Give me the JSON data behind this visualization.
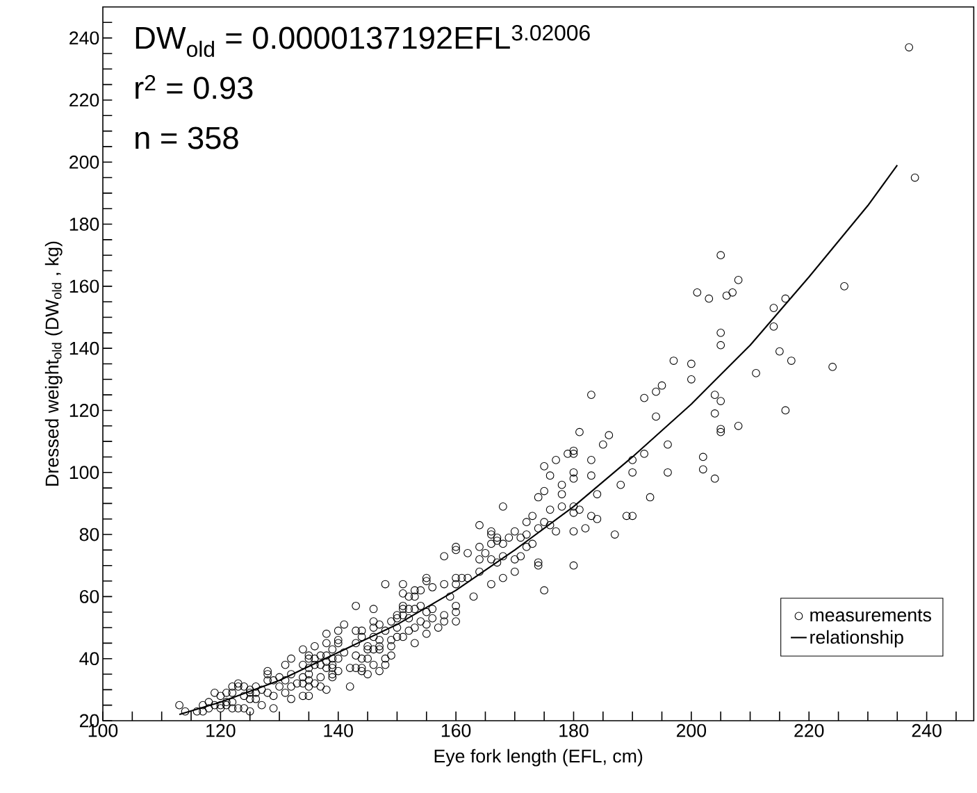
{
  "chart_data": {
    "type": "scatter",
    "xlabel": "Eye fork length (EFL, cm)",
    "ylabel": "Dressed weight$_{old}$ (DW$_{old}$ , kg)",
    "annotations": [
      "DW$_{old}$ = 0.0000137192EFL$^{3.02006}$",
      "r$^{2}$ = 0.93",
      "n = 358"
    ],
    "xlim": [
      100,
      248
    ],
    "ylim": [
      20,
      250
    ],
    "xticks": [
      100,
      {
        "value": 105,
        "label": null
      },
      {
        "value": 110,
        "label": null
      },
      {
        "value": 115,
        "label": null
      },
      120,
      {
        "value": 125,
        "label": null
      },
      {
        "value": 130,
        "label": null
      },
      {
        "value": 135,
        "label": null
      },
      140,
      {
        "value": 145,
        "label": null
      },
      {
        "value": 150,
        "label": null
      },
      {
        "value": 155,
        "label": null
      },
      160,
      {
        "value": 165,
        "label": null
      },
      {
        "value": 170,
        "label": null
      },
      {
        "value": 175,
        "label": null
      },
      180,
      {
        "value": 185,
        "label": null
      },
      {
        "value": 190,
        "label": null
      },
      {
        "value": 195,
        "label": null
      },
      200,
      {
        "value": 205,
        "label": null
      },
      {
        "value": 210,
        "label": null
      },
      {
        "value": 215,
        "label": null
      },
      220,
      {
        "value": 225,
        "label": null
      },
      {
        "value": 230,
        "label": null
      },
      {
        "value": 235,
        "label": null
      },
      240,
      {
        "value": 245,
        "label": null
      }
    ],
    "yticks": [
      20,
      {
        "value": 25,
        "label": null
      },
      {
        "value": 30,
        "label": null
      },
      {
        "value": 35,
        "label": null
      },
      40,
      {
        "value": 45,
        "label": null
      },
      {
        "value": 50,
        "label": null
      },
      {
        "value": 55,
        "label": null
      },
      60,
      {
        "value": 65,
        "label": null
      },
      {
        "value": 70,
        "label": null
      },
      {
        "value": 75,
        "label": null
      },
      80,
      {
        "value": 85,
        "label": null
      },
      {
        "value": 90,
        "label": null
      },
      {
        "value": 95,
        "label": null
      },
      100,
      {
        "value": 105,
        "label": null
      },
      {
        "value": 110,
        "label": null
      },
      {
        "value": 115,
        "label": null
      },
      120,
      {
        "value": 125,
        "label": null
      },
      {
        "value": 130,
        "label": null
      },
      {
        "value": 135,
        "label": null
      },
      140,
      {
        "value": 145,
        "label": null
      },
      {
        "value": 150,
        "label": null
      },
      {
        "value": 155,
        "label": null
      },
      160,
      {
        "value": 165,
        "label": null
      },
      {
        "value": 170,
        "label": null
      },
      {
        "value": 175,
        "label": null
      },
      180,
      {
        "value": 185,
        "label": null
      },
      {
        "value": 190,
        "label": null
      },
      {
        "value": 195,
        "label": null
      },
      200,
      {
        "value": 205,
        "label": null
      },
      {
        "value": 210,
        "label": null
      },
      {
        "value": 215,
        "label": null
      },
      220,
      {
        "value": 225,
        "label": null
      },
      {
        "value": 230,
        "label": null
      },
      {
        "value": 235,
        "label": null
      },
      240,
      {
        "value": 245,
        "label": null
      }
    ],
    "grid": false,
    "legend": "bottom right",
    "marker": "circle",
    "series": [
      {
        "name": "measurements",
        "color": "#000000",
        "x": [
          237,
          238,
          205,
          208,
          201,
          203,
          206,
          207,
          216,
          226,
          214,
          214,
          205,
          205,
          200,
          200,
          215,
          217,
          211,
          224,
          204,
          205,
          204,
          216,
          205,
          205,
          208,
          202,
          202,
          204,
          197,
          195,
          192,
          194,
          194,
          183,
          196,
          196,
          181,
          186,
          185,
          179,
          180,
          180,
          177,
          175,
          183,
          190,
          192,
          176,
          180,
          180,
          183,
          190,
          188,
          174,
          175,
          178,
          178,
          178,
          181,
          180,
          180,
          184,
          183,
          184,
          168,
          176,
          173,
          172,
          174,
          175,
          176,
          177,
          180,
          182,
          187,
          193,
          189,
          190,
          164,
          166,
          166,
          167,
          167,
          168,
          166,
          169,
          170,
          171,
          172,
          172,
          173,
          162,
          164,
          164,
          165,
          166,
          168,
          170,
          171,
          167,
          174,
          174,
          170,
          164,
          168,
          166,
          175,
          180,
          161,
          162,
          163,
          113,
          114,
          116,
          117,
          117,
          118,
          118,
          119,
          119,
          120,
          120,
          120,
          121,
          121,
          121,
          122,
          122,
          122,
          122,
          123,
          123,
          123,
          124,
          124,
          124,
          125,
          125,
          125,
          125,
          126,
          126,
          126,
          127,
          127,
          128,
          128,
          128,
          128,
          129,
          129,
          129,
          130,
          130,
          131,
          131,
          131,
          132,
          132,
          132,
          132,
          133,
          134,
          134,
          134,
          134,
          134,
          135,
          135,
          135,
          135,
          135,
          135,
          135,
          136,
          136,
          136,
          136,
          137,
          137,
          137,
          137,
          138,
          138,
          138,
          138,
          138,
          138,
          139,
          139,
          139,
          139,
          139,
          139,
          140,
          140,
          140,
          140,
          140,
          141,
          141,
          142,
          142,
          143,
          143,
          143,
          143,
          143,
          144,
          144,
          144,
          144,
          144,
          145,
          145,
          145,
          145,
          146,
          146,
          146,
          146,
          146,
          146,
          147,
          147,
          147,
          147,
          147,
          148,
          148,
          148,
          148,
          149,
          149,
          149,
          149,
          150,
          150,
          150,
          150,
          151,
          151,
          151,
          151,
          151,
          151,
          152,
          152,
          152,
          152,
          153,
          153,
          153,
          153,
          153,
          154,
          154,
          154,
          155,
          155,
          155,
          155,
          155,
          156,
          156,
          156,
          157,
          158,
          158,
          158,
          158,
          159,
          160,
          160,
          160,
          160,
          160,
          160,
          160
        ],
        "values": [
          237,
          195,
          170,
          162,
          158,
          156,
          157,
          158,
          156,
          160,
          153,
          147,
          145,
          141,
          135,
          130,
          139,
          136,
          132,
          134,
          125,
          123,
          119,
          120,
          114,
          113,
          115,
          105,
          101,
          98,
          136,
          128,
          124,
          126,
          118,
          125,
          109,
          100,
          113,
          112,
          109,
          106,
          107,
          106,
          104,
          102,
          104,
          104,
          106,
          99,
          100,
          98,
          99,
          100,
          96,
          92,
          94,
          96,
          93,
          89,
          88,
          89,
          87,
          93,
          86,
          85,
          89,
          88,
          86,
          84,
          82,
          84,
          83,
          81,
          81,
          82,
          80,
          92,
          86,
          86,
          83,
          81,
          80,
          79,
          78,
          77,
          77,
          79,
          81,
          79,
          80,
          76,
          77,
          74,
          76,
          72,
          74,
          72,
          73,
          72,
          73,
          71,
          71,
          70,
          68,
          68,
          66,
          64,
          62,
          70,
          66,
          66,
          60,
          25,
          23,
          23,
          23,
          25,
          24,
          26,
          25,
          29,
          24,
          25,
          28,
          25,
          26,
          29,
          24,
          26,
          29,
          31,
          24,
          31,
          32,
          24,
          28,
          31,
          23,
          27,
          29,
          30,
          27,
          29,
          31,
          25,
          30,
          29,
          33,
          35,
          36,
          24,
          28,
          33,
          31,
          34,
          29,
          33,
          38,
          27,
          31,
          35,
          40,
          32,
          28,
          32,
          34,
          38,
          43,
          28,
          31,
          33,
          35,
          37,
          40,
          41,
          32,
          38,
          40,
          44,
          31,
          34,
          38,
          41,
          30,
          37,
          39,
          41,
          45,
          48,
          34,
          35,
          37,
          38,
          40,
          43,
          36,
          40,
          45,
          46,
          49,
          42,
          51,
          37,
          31,
          57,
          49,
          45,
          41,
          37,
          49,
          47,
          40,
          37,
          36,
          44,
          43,
          40,
          35,
          56,
          52,
          50,
          47,
          43,
          38,
          51,
          46,
          44,
          43,
          36,
          64,
          49,
          40,
          38,
          52,
          46,
          44,
          41,
          54,
          53,
          50,
          47,
          64,
          61,
          57,
          56,
          54,
          47,
          60,
          56,
          53,
          49,
          62,
          60,
          56,
          50,
          45,
          62,
          57,
          52,
          66,
          65,
          55,
          51,
          48,
          63,
          56,
          53,
          50,
          73,
          64,
          54,
          52,
          60,
          76,
          75,
          66,
          64,
          57,
          55,
          52
        ]
      },
      {
        "name": "relationship",
        "type": "line",
        "color": "#000000",
        "marker": "none",
        "line_style": "solid",
        "x": [
          113,
          120,
          130,
          140,
          150,
          160,
          170,
          180,
          190,
          200,
          210,
          220,
          230,
          235
        ],
        "values": [
          22,
          26,
          33,
          42,
          51,
          62,
          75,
          89,
          105,
          122,
          141,
          163,
          186,
          199
        ]
      }
    ]
  }
}
